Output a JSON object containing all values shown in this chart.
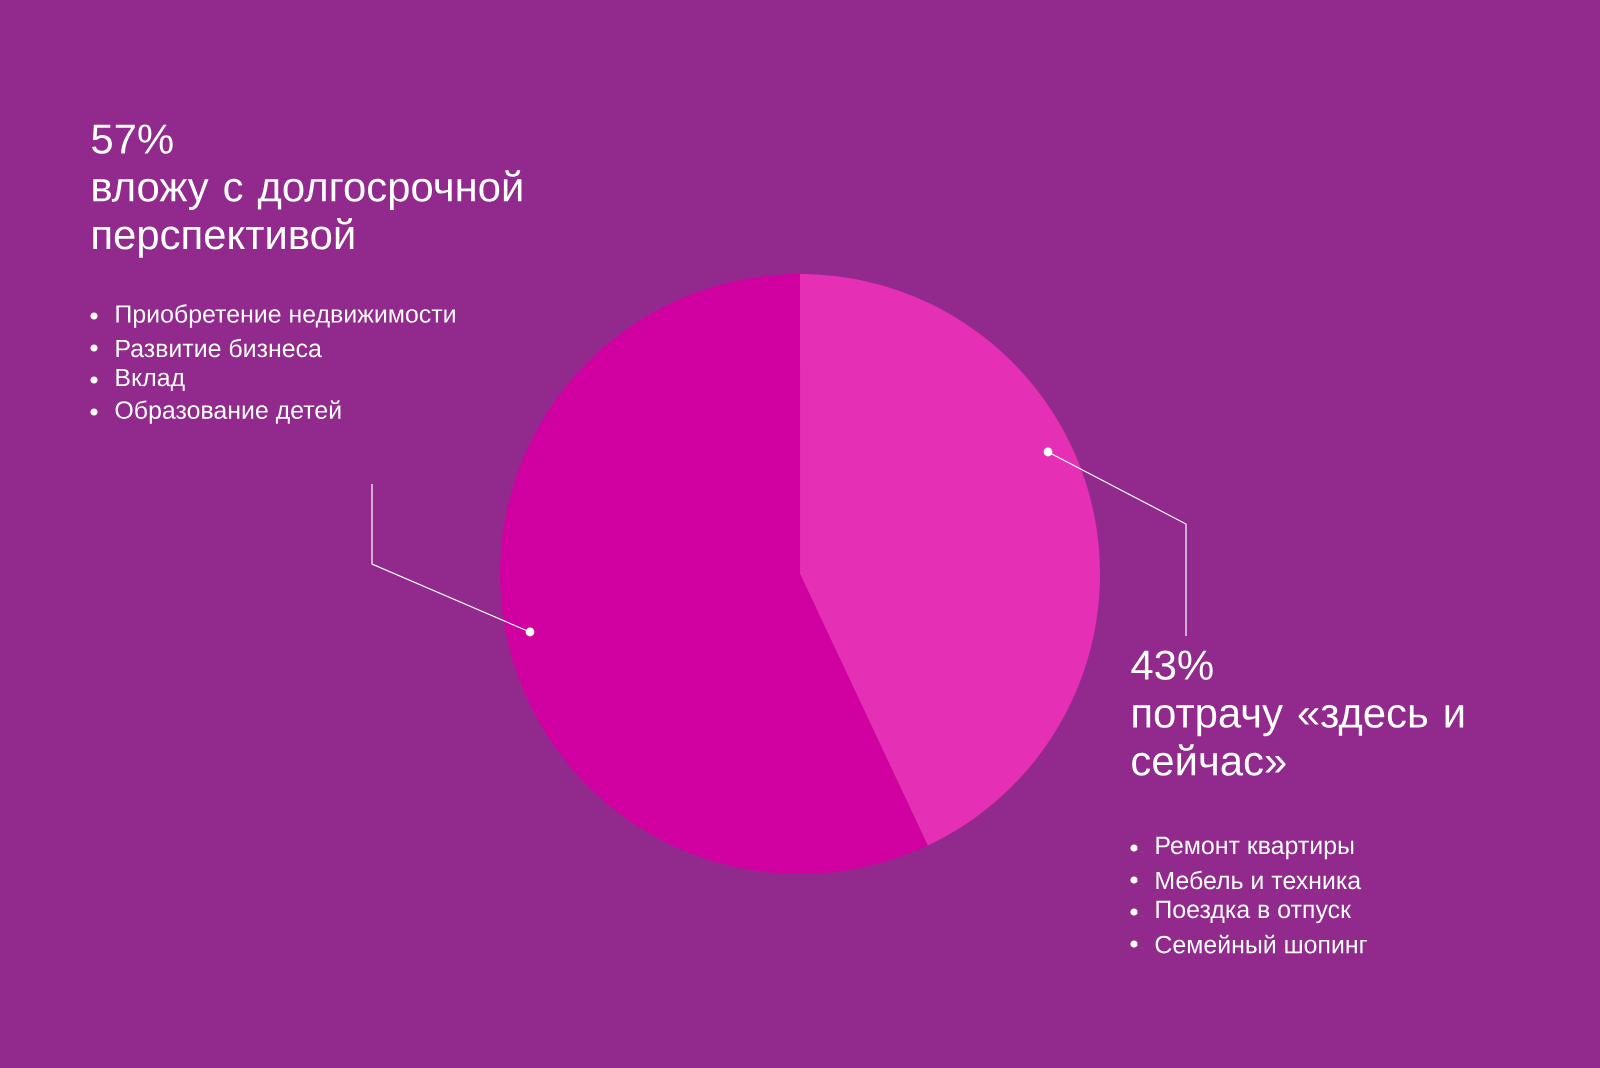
{
  "chart_data": {
    "type": "pie",
    "categories": [
      "потрачу «здесь и сейчас»",
      "вложу с долгосрочной перспективой"
    ],
    "values": [
      43,
      57
    ],
    "value_labels": [
      "43%",
      "57%"
    ],
    "colors": [
      "#e52fb4",
      "#d100a0"
    ],
    "annotations": [
      "Ремонт квартиры",
      "Мебель и техника",
      "Поездка в отпуск",
      "Семейный шопинг",
      "Приобретение недвижимости",
      "Развитие бизнеса",
      "Вклад",
      "Образование детей"
    ]
  }
}
